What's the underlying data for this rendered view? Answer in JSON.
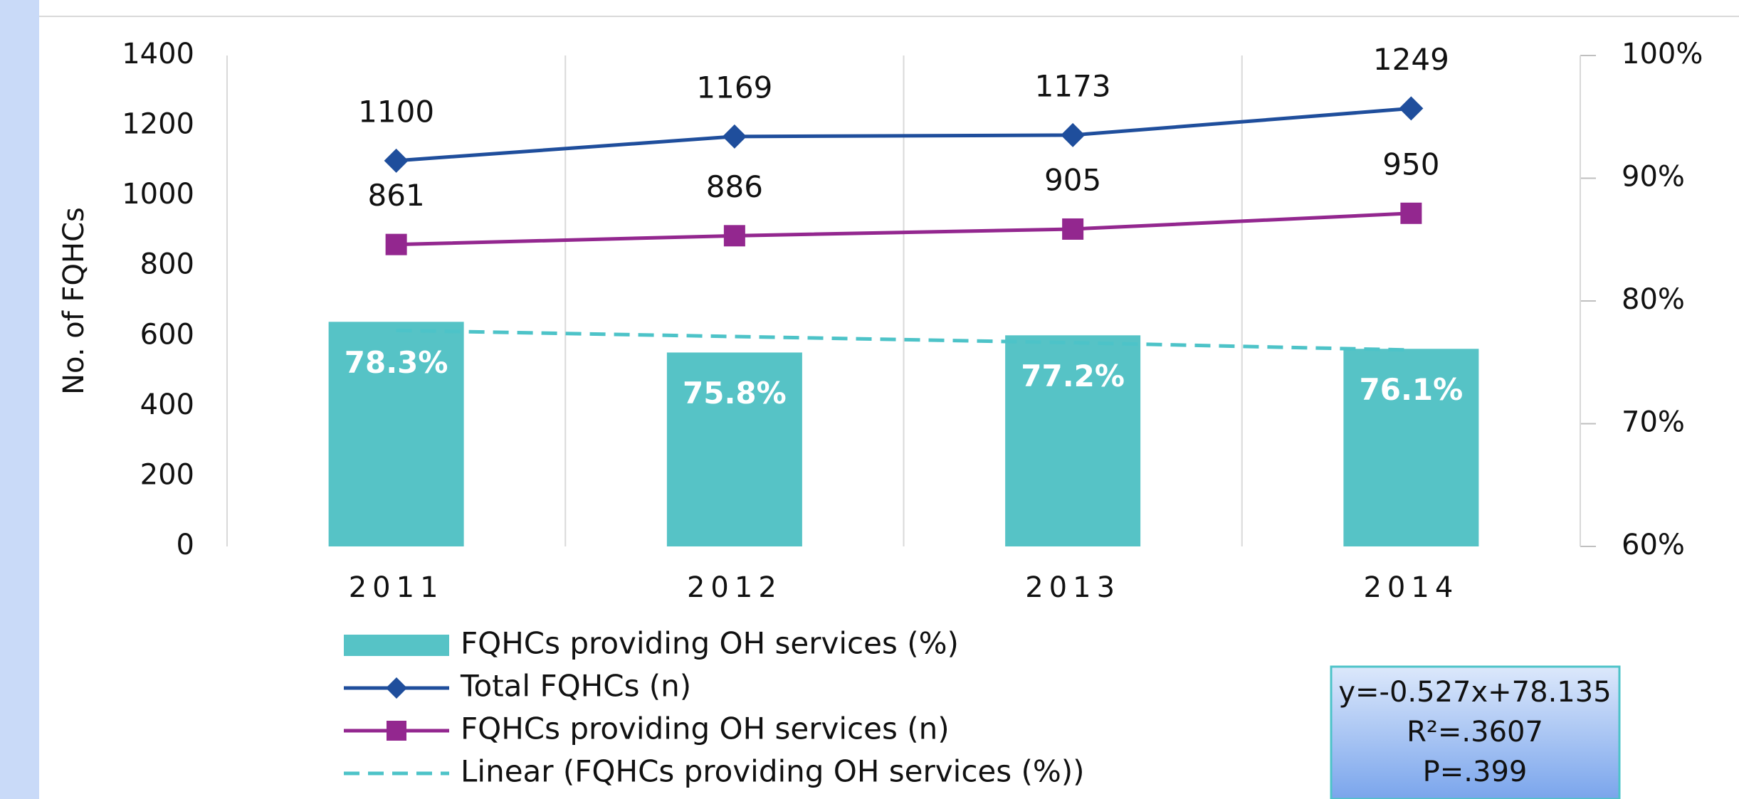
{
  "chart_data": {
    "type": "bar_line",
    "y_label": "No. of FQHCs",
    "categories": [
      "2011",
      "2012",
      "2013",
      "2014"
    ],
    "ylim": [
      0,
      1400
    ],
    "yticks": [
      0,
      200,
      400,
      600,
      800,
      1000,
      1200,
      1400
    ],
    "y2lim": [
      60,
      100
    ],
    "y2ticks": [
      {
        "value": 60,
        "label": "60%"
      },
      {
        "value": 70,
        "label": "70%"
      },
      {
        "value": 80,
        "label": "80%"
      },
      {
        "value": 90,
        "label": "90%"
      },
      {
        "value": 100,
        "label": "100%"
      }
    ],
    "grid": "vertical",
    "series": [
      {
        "name": "FQHCs providing OH services (%)",
        "type": "bar",
        "axis": "y2",
        "color": "#56c3c6",
        "values": [
          78.3,
          75.8,
          77.2,
          76.1
        ],
        "value_labels": [
          "78.3%",
          "75.8%",
          "77.2%",
          "76.1%"
        ]
      },
      {
        "name": "Total FQHCs (n)",
        "type": "line",
        "axis": "y",
        "marker": "diamond",
        "color": "#1f4e9c",
        "values": [
          1100,
          1169,
          1173,
          1249
        ]
      },
      {
        "name": "FQHCs providing OH services (n)",
        "type": "line",
        "axis": "y",
        "marker": "square",
        "color": "#93278f",
        "values": [
          861,
          886,
          905,
          950
        ]
      },
      {
        "name": "Linear (FQHCs providing OH services (%))",
        "type": "trend",
        "axis": "y2",
        "dashed": true,
        "color": "#4dc3c8",
        "values": [
          77.6,
          77.1,
          76.6,
          76.0
        ]
      }
    ],
    "annotation": [
      "y=-0.527x+78.135",
      "R²=.3607",
      "P=.399"
    ]
  }
}
